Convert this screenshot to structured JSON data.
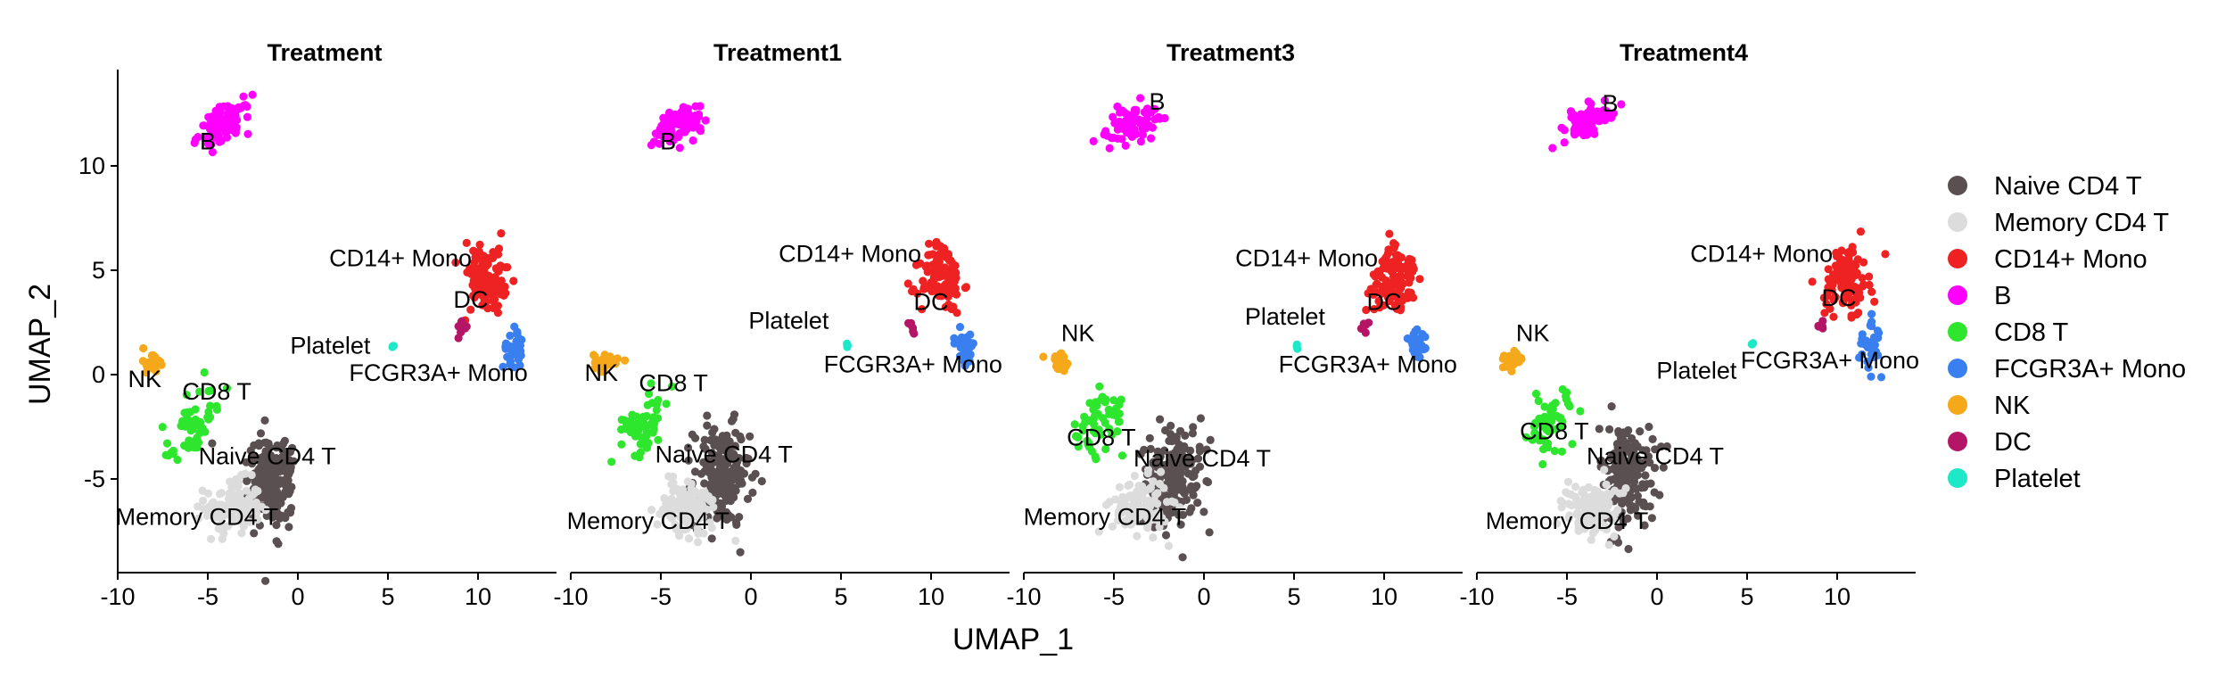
{
  "chart_data": {
    "type": "scatter",
    "xlabel": "UMAP_1",
    "ylabel": "UMAP_2",
    "xlim": [
      -10.5,
      14.5
    ],
    "ylim": [
      -9.5,
      14.5
    ],
    "xticks": [
      -10,
      -5,
      0,
      5,
      10
    ],
    "yticks": [
      -5,
      0,
      5,
      10
    ],
    "xtick_labels": [
      "-10",
      "-5",
      "0",
      "5",
      "10"
    ],
    "ytick_labels": [
      "-5",
      "0",
      "5",
      "10"
    ],
    "grid": false,
    "legend_position": "right",
    "clusters": [
      {
        "name": "Naive CD4 T",
        "color": "#5a5052",
        "center": [
          -1.6,
          -4.9
        ],
        "spread": [
          1.4,
          2.2
        ],
        "n": 190
      },
      {
        "name": "Memory CD4 T",
        "color": "#dcdcdc",
        "center": [
          -3.6,
          -6.3
        ],
        "spread": [
          1.4,
          1.2
        ],
        "n": 120
      },
      {
        "name": "CD14+ Mono",
        "color": "#ee2222",
        "center": [
          10.5,
          4.8
        ],
        "spread": [
          1.2,
          1.5
        ],
        "n": 110
      },
      {
        "name": "B",
        "color": "#ff00ff",
        "center": [
          -4.0,
          12.0
        ],
        "spread": [
          1.3,
          0.8
        ],
        "n": 80
      },
      {
        "name": "CD8 T",
        "color": "#2ee62e",
        "center": [
          -5.8,
          -2.3
        ],
        "spread": [
          1.1,
          1.5
        ],
        "n": 55
      },
      {
        "name": "FCGR3A+ Mono",
        "color": "#3a7ff0",
        "center": [
          11.9,
          1.4
        ],
        "spread": [
          0.5,
          0.9
        ],
        "n": 35
      },
      {
        "name": "NK",
        "color": "#f5a81a",
        "center": [
          -8.1,
          0.6
        ],
        "spread": [
          0.6,
          0.4
        ],
        "n": 28
      },
      {
        "name": "DC",
        "color": "#b51566",
        "center": [
          9.0,
          2.3
        ],
        "spread": [
          0.3,
          0.3
        ],
        "n": 6
      },
      {
        "name": "Platelet",
        "color": "#1de8c8",
        "center": [
          5.2,
          1.4
        ],
        "spread": [
          0.1,
          0.1
        ],
        "n": 3
      }
    ],
    "panels": [
      {
        "title": "Treatment",
        "labels": [
          {
            "text": "B",
            "x": -5.0,
            "y": 10.8
          },
          {
            "text": "CD14+ Mono",
            "x": 5.7,
            "y": 5.2
          },
          {
            "text": "DC",
            "x": 9.6,
            "y": 3.2
          },
          {
            "text": "Platelet",
            "x": 1.8,
            "y": 1.0
          },
          {
            "text": "FCGR3A+ Mono",
            "x": 7.8,
            "y": -0.3
          },
          {
            "text": "NK",
            "x": -8.5,
            "y": -0.6
          },
          {
            "text": "CD8 T",
            "x": -4.5,
            "y": -1.2
          },
          {
            "text": "Naive CD4 T",
            "x": -1.7,
            "y": -4.3
          },
          {
            "text": "Memory CD4 T",
            "x": -5.6,
            "y": -7.2
          }
        ]
      },
      {
        "title": "Treatment1",
        "labels": [
          {
            "text": "B",
            "x": -4.6,
            "y": 10.8
          },
          {
            "text": "CD14+ Mono",
            "x": 5.5,
            "y": 5.4
          },
          {
            "text": "DC",
            "x": 10.0,
            "y": 3.1
          },
          {
            "text": "Platelet",
            "x": 2.1,
            "y": 2.2
          },
          {
            "text": "FCGR3A+ Mono",
            "x": 9.0,
            "y": 0.1
          },
          {
            "text": "NK",
            "x": -8.3,
            "y": -0.3
          },
          {
            "text": "CD8 T",
            "x": -4.3,
            "y": -0.8
          },
          {
            "text": "Naive CD4 T",
            "x": -1.5,
            "y": -4.2
          },
          {
            "text": "Memory CD4 T",
            "x": -5.7,
            "y": -7.4
          }
        ]
      },
      {
        "title": "Treatment3",
        "labels": [
          {
            "text": "B",
            "x": -2.6,
            "y": 12.7
          },
          {
            "text": "NK",
            "x": -7.0,
            "y": 1.6
          },
          {
            "text": "CD14+ Mono",
            "x": 5.7,
            "y": 5.2
          },
          {
            "text": "Platelet",
            "x": 4.5,
            "y": 2.4
          },
          {
            "text": "DC",
            "x": 10.0,
            "y": 3.1
          },
          {
            "text": "FCGR3A+ Mono",
            "x": 9.1,
            "y": 0.1
          },
          {
            "text": "CD8 T",
            "x": -5.7,
            "y": -3.4
          },
          {
            "text": "Naive CD4 T",
            "x": -0.1,
            "y": -4.4
          },
          {
            "text": "Memory CD4 T",
            "x": -5.5,
            "y": -7.2
          }
        ]
      },
      {
        "title": "Treatment4",
        "labels": [
          {
            "text": "B",
            "x": -2.6,
            "y": 12.6
          },
          {
            "text": "CD14+ Mono",
            "x": 5.8,
            "y": 5.4
          },
          {
            "text": "NK",
            "x": -6.9,
            "y": 1.6
          },
          {
            "text": "DC",
            "x": 10.1,
            "y": 3.3
          },
          {
            "text": "FCGR3A+ Mono",
            "x": 9.6,
            "y": 0.3
          },
          {
            "text": "Platelet",
            "x": 2.2,
            "y": -0.2
          },
          {
            "text": "CD8 T",
            "x": -5.7,
            "y": -3.1
          },
          {
            "text": "Naive CD4 T",
            "x": -0.1,
            "y": -4.3
          },
          {
            "text": "Memory CD4 T",
            "x": -5.0,
            "y": -7.4
          }
        ]
      }
    ]
  }
}
